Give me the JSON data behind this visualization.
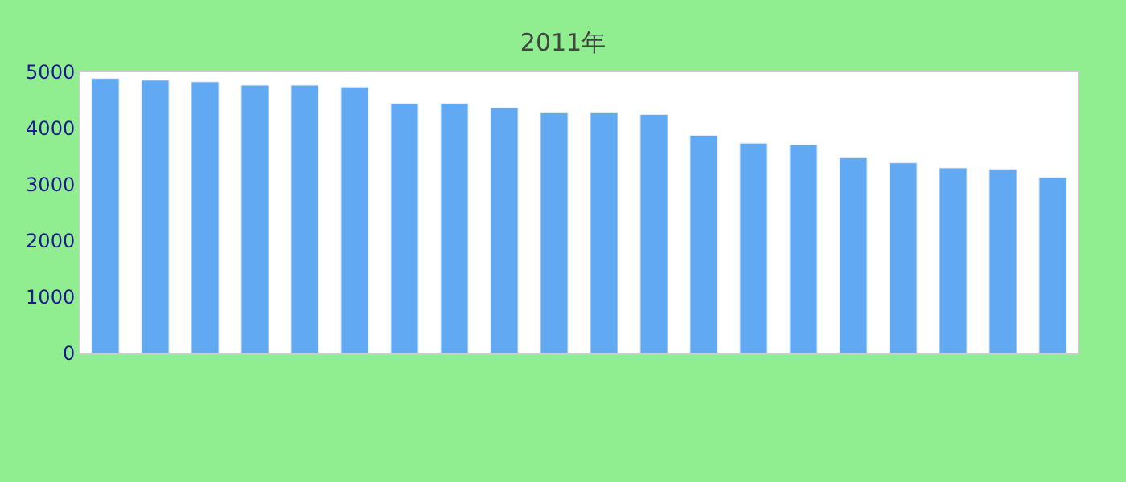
{
  "chart_data": {
    "type": "bar",
    "title": "2011年",
    "categories": [
      null,
      null,
      null,
      null,
      null,
      null,
      null,
      null,
      null,
      null,
      null,
      null,
      null,
      null,
      null,
      null,
      null,
      null,
      null,
      null
    ],
    "values": [
      4890,
      4860,
      4830,
      4770,
      4770,
      4740,
      4450,
      4450,
      4370,
      4280,
      4280,
      4250,
      3880,
      3740,
      3710,
      3480,
      3390,
      3300,
      3280,
      3130
    ],
    "color": "#62a9f4",
    "ylim": [
      0,
      5000
    ],
    "yticks": [
      0,
      1000,
      2000,
      3000,
      4000,
      5000
    ]
  }
}
